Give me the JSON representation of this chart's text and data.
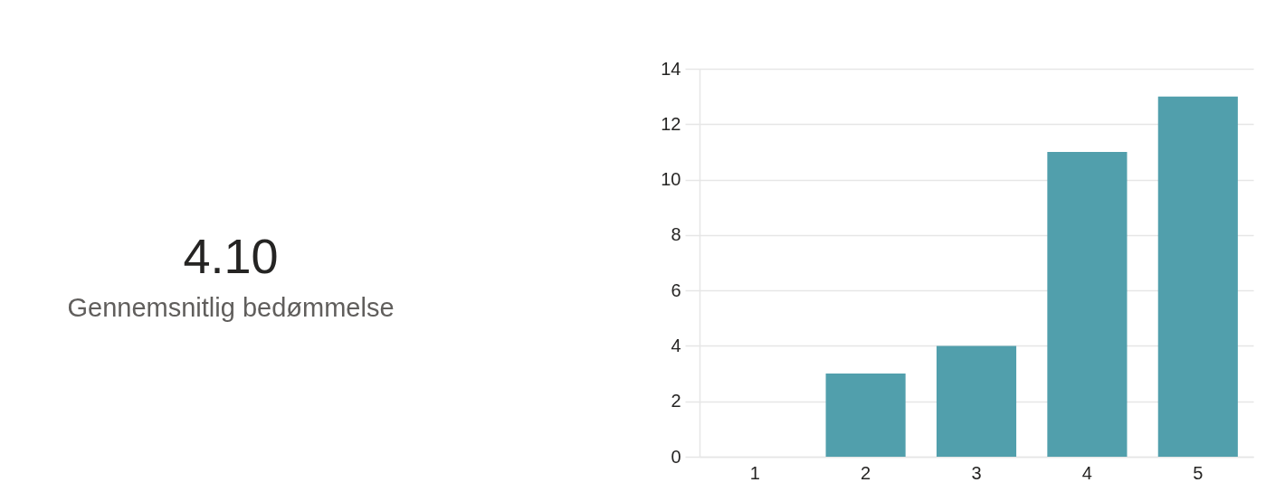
{
  "chart_data": [
    {
      "type": "other",
      "title": "4.10",
      "subtitle": "Gennemsnitlig bedømmelse"
    },
    {
      "type": "bar",
      "categories": [
        "1",
        "2",
        "3",
        "4",
        "5"
      ],
      "values": [
        0,
        3,
        4,
        11,
        13
      ],
      "color": "#519fac",
      "ylim": [
        0,
        14
      ],
      "yticks": [
        0,
        2,
        4,
        6,
        8,
        10,
        12,
        14
      ],
      "grid": "y"
    }
  ]
}
